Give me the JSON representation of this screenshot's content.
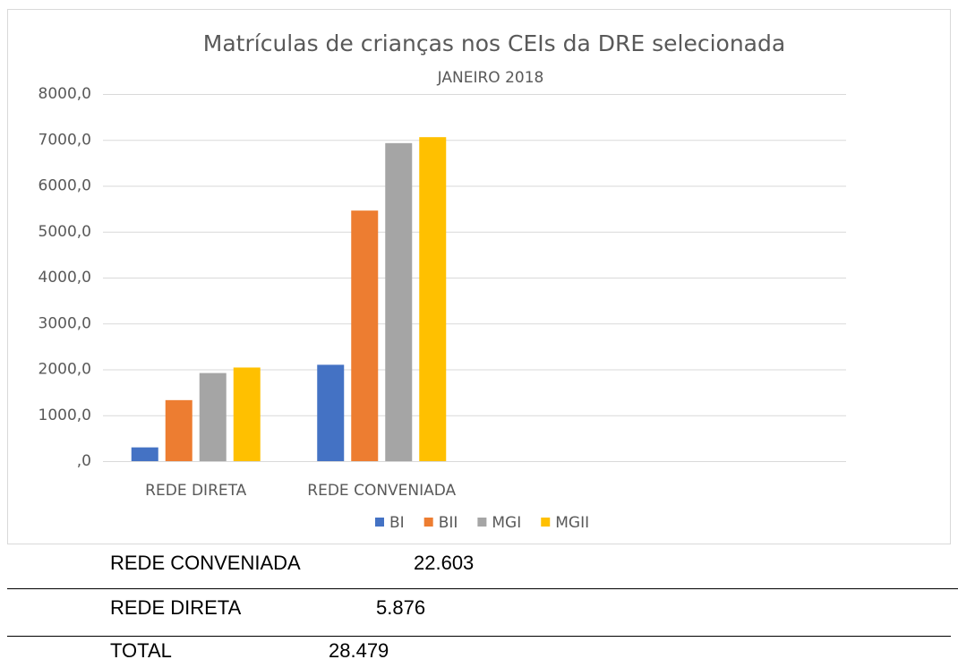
{
  "chart_data": {
    "type": "bar",
    "title": "Matrículas de crianças nos CEIs da DRE selecionada",
    "subtitle": "JANEIRO 2018",
    "categories": [
      "REDE DIRETA",
      "REDE CONVENIADA",
      null,
      null
    ],
    "series": [
      {
        "name": "BI",
        "color": "#4472c4",
        "values": [
          300,
          2100,
          null,
          null
        ]
      },
      {
        "name": "BII",
        "color": "#ed7d31",
        "values": [
          1330,
          5460,
          null,
          null
        ]
      },
      {
        "name": "MGI",
        "color": "#a5a5a5",
        "values": [
          1920,
          6930,
          null,
          null
        ]
      },
      {
        "name": "MGII",
        "color": "#ffc000",
        "values": [
          2040,
          7060,
          null,
          null
        ]
      }
    ],
    "ylim": [
      0,
      8000
    ],
    "yticks": [
      {
        "value": 0,
        "label": ",0"
      },
      {
        "value": 1000,
        "label": "1000,0"
      },
      {
        "value": 2000,
        "label": "2000,0"
      },
      {
        "value": 3000,
        "label": "3000,0"
      },
      {
        "value": 4000,
        "label": "4000,0"
      },
      {
        "value": 5000,
        "label": "5000,0"
      },
      {
        "value": 6000,
        "label": "6000,0"
      },
      {
        "value": 7000,
        "label": "7000,0"
      },
      {
        "value": 8000,
        "label": "8000,0"
      }
    ],
    "grid": true,
    "legend": "bottom"
  },
  "table": {
    "rows": [
      [
        "REDE CONVENIADA",
        "22.603"
      ],
      [
        "REDE DIRETA",
        "5.876"
      ],
      [
        "TOTAL",
        "28.479"
      ]
    ]
  }
}
